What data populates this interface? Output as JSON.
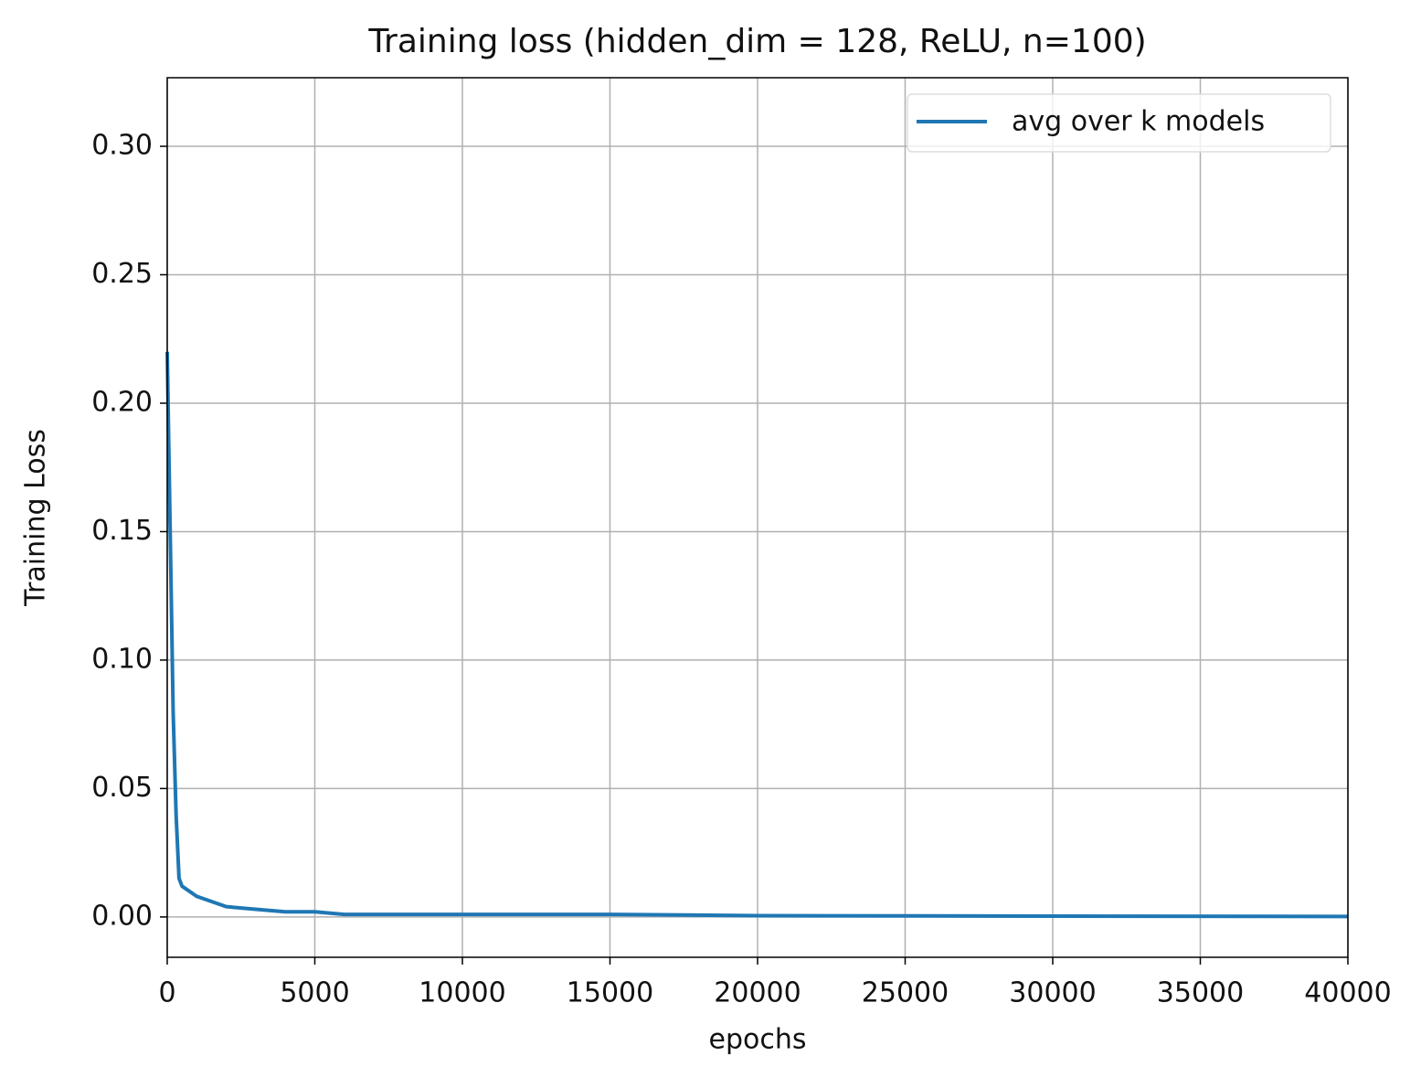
{
  "chart_data": {
    "type": "line",
    "title": "Training loss (hidden_dim = 128, ReLU, n=100)",
    "xlabel": "epochs",
    "ylabel": "Training Loss",
    "x": [
      0,
      100,
      200,
      300,
      400,
      500,
      1000,
      1500,
      2000,
      3000,
      4000,
      5000,
      6000,
      10000,
      15000,
      20000,
      30000,
      40000
    ],
    "series": [
      {
        "name": "avg over k models",
        "color": "#1f77b4",
        "values": [
          0.22,
          0.15,
          0.08,
          0.04,
          0.015,
          0.012,
          0.008,
          0.006,
          0.004,
          0.003,
          0.002,
          0.002,
          0.001,
          0.001,
          0.001,
          0.0005,
          0.0003,
          0.0002
        ]
      }
    ],
    "xlim": [
      0,
      40000
    ],
    "ylim": [
      -0.0157,
      0.3267
    ],
    "xticks": [
      0,
      5000,
      10000,
      15000,
      20000,
      25000,
      30000,
      35000,
      40000
    ],
    "yticks": [
      {
        "value": 0,
        "label": "0.00"
      },
      {
        "value": 0.05,
        "label": "0.05"
      },
      {
        "value": 0.1,
        "label": "0.10"
      },
      {
        "value": 0.15,
        "label": "0.15"
      },
      {
        "value": 0.2,
        "label": "0.20"
      },
      {
        "value": 0.25,
        "label": "0.25"
      },
      {
        "value": 0.3,
        "label": "0.30"
      }
    ],
    "grid": true,
    "legend": "upper right"
  }
}
